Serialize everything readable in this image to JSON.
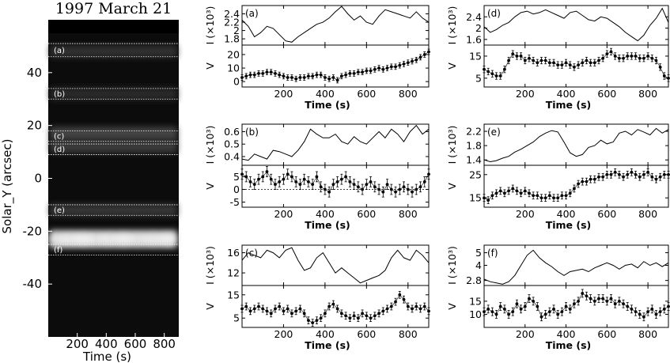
{
  "image_panel": {
    "title": "1997 March 21",
    "ylabel": "Solar_Y (arcsec)",
    "xlabel": "Time (s)",
    "yticks": [
      40,
      20,
      0,
      -20,
      -40
    ],
    "xticks": [
      200,
      400,
      600,
      800
    ],
    "ylim": [
      -60,
      60
    ],
    "xlim": [
      0,
      900
    ],
    "bright_bands": [
      {
        "y": 48,
        "intensity": 0.12
      },
      {
        "y": 32,
        "intensity": 0.1
      },
      {
        "y": 17,
        "intensity": 0.22
      },
      {
        "y": 12,
        "intensity": 0.18
      },
      {
        "y": -12,
        "intensity": 0.15
      },
      {
        "y": -23,
        "intensity": 0.85
      }
    ],
    "slits": [
      {
        "label": "(a)",
        "y_top": 51,
        "y_bot": 46
      },
      {
        "label": "(b)",
        "y_top": 34,
        "y_bot": 30
      },
      {
        "label": "(c)",
        "y_top": 18,
        "y_bot": 14
      },
      {
        "label": "(d)",
        "y_top": 13,
        "y_bot": 9
      },
      {
        "label": "(e)",
        "y_top": -10,
        "y_bot": -14
      },
      {
        "label": "(f)",
        "y_top": -25,
        "y_bot": -29
      }
    ]
  },
  "chart_data": [
    {
      "type": "line",
      "panel": "(a)",
      "intensity": {
        "ylabel": "I (×10³)",
        "yticks": [
          1.8,
          2.0,
          2.2,
          2.4
        ],
        "ylim": [
          1.65,
          2.6
        ],
        "x": [
          0,
          30,
          60,
          90,
          120,
          150,
          180,
          210,
          240,
          270,
          300,
          330,
          360,
          390,
          420,
          450,
          480,
          510,
          540,
          570,
          600,
          630,
          660,
          690,
          720,
          750,
          780,
          810,
          840,
          870,
          900
        ],
        "y": [
          2.25,
          2.1,
          1.85,
          1.95,
          2.1,
          2.05,
          1.9,
          1.75,
          1.72,
          1.85,
          1.95,
          2.05,
          2.15,
          2.2,
          2.3,
          2.45,
          2.58,
          2.4,
          2.25,
          2.35,
          2.2,
          2.15,
          2.35,
          2.5,
          2.45,
          2.4,
          2.35,
          2.3,
          2.45,
          2.3,
          2.2
        ]
      },
      "velocity": {
        "ylabel": "V",
        "yticks": [
          0,
          10,
          20
        ],
        "ylim": [
          -4,
          27
        ],
        "dashed_zero": false,
        "x": [
          0,
          20,
          40,
          60,
          80,
          100,
          120,
          140,
          160,
          180,
          200,
          220,
          240,
          260,
          280,
          300,
          320,
          340,
          360,
          380,
          400,
          420,
          440,
          460,
          480,
          500,
          520,
          540,
          560,
          580,
          600,
          620,
          640,
          660,
          680,
          700,
          720,
          740,
          760,
          780,
          800,
          820,
          840,
          860,
          880,
          900
        ],
        "y": [
          3,
          4,
          5,
          5,
          6,
          6,
          7,
          7,
          6,
          5,
          4,
          3,
          3,
          2,
          3,
          3,
          4,
          4,
          5,
          5,
          3,
          2,
          3,
          1,
          4,
          5,
          6,
          6,
          7,
          7,
          8,
          8,
          9,
          10,
          9,
          10,
          11,
          11,
          12,
          13,
          14,
          15,
          16,
          18,
          20,
          22
        ],
        "err": 2
      }
    },
    {
      "type": "line",
      "panel": "(b)",
      "intensity": {
        "ylabel": "I (×10³)",
        "yticks": [
          0.4,
          0.5,
          0.6
        ],
        "ylim": [
          0.33,
          0.66
        ],
        "x": [
          0,
          30,
          60,
          90,
          120,
          150,
          180,
          210,
          240,
          270,
          300,
          330,
          360,
          390,
          420,
          450,
          480,
          510,
          540,
          570,
          600,
          630,
          660,
          690,
          720,
          750,
          780,
          810,
          840,
          870,
          900
        ],
        "y": [
          0.38,
          0.37,
          0.42,
          0.4,
          0.38,
          0.45,
          0.44,
          0.42,
          0.4,
          0.45,
          0.52,
          0.62,
          0.58,
          0.55,
          0.55,
          0.58,
          0.52,
          0.5,
          0.56,
          0.52,
          0.5,
          0.55,
          0.6,
          0.55,
          0.62,
          0.58,
          0.52,
          0.6,
          0.65,
          0.58,
          0.62
        ]
      },
      "velocity": {
        "ylabel": "V",
        "yticks": [
          -5,
          0,
          5
        ],
        "ylim": [
          -7,
          9.5
        ],
        "dashed_zero": true,
        "x": [
          0,
          20,
          40,
          60,
          80,
          100,
          120,
          140,
          160,
          180,
          200,
          220,
          240,
          260,
          280,
          300,
          320,
          340,
          360,
          380,
          400,
          420,
          440,
          460,
          480,
          500,
          520,
          540,
          560,
          580,
          600,
          620,
          640,
          660,
          680,
          700,
          720,
          740,
          760,
          780,
          800,
          820,
          840,
          860,
          880,
          900
        ],
        "y": [
          6,
          5,
          3,
          2,
          4,
          5,
          7,
          4,
          2,
          3,
          4,
          6,
          5,
          3,
          2,
          4,
          3,
          2,
          5,
          1,
          0,
          -1,
          2,
          3,
          4,
          5,
          3,
          2,
          1,
          0,
          2,
          3,
          1,
          0,
          -1,
          2,
          0,
          -1,
          0,
          1,
          0,
          -1,
          0,
          1,
          3,
          6
        ],
        "err": 2
      }
    },
    {
      "type": "line",
      "panel": "(c)",
      "intensity": {
        "ylabel": "I (×10³)",
        "yticks": [
          12,
          16
        ],
        "ylim": [
          9.5,
          17.5
        ],
        "x": [
          0,
          30,
          60,
          90,
          120,
          150,
          180,
          210,
          240,
          270,
          300,
          330,
          360,
          390,
          420,
          450,
          480,
          510,
          540,
          570,
          600,
          630,
          660,
          690,
          720,
          750,
          780,
          810,
          840,
          870,
          900
        ],
        "y": [
          14.5,
          16.0,
          15.5,
          15.0,
          16.5,
          16.0,
          15.0,
          16.5,
          17.0,
          14.5,
          12.5,
          13.0,
          15.0,
          16.0,
          14.0,
          12.0,
          13.0,
          12.0,
          11.0,
          10.0,
          10.5,
          11.0,
          11.5,
          12.5,
          15.0,
          16.5,
          15.0,
          14.5,
          16.5,
          15.5,
          14.0
        ]
      },
      "velocity": {
        "ylabel": "V",
        "yticks": [
          5,
          15
        ],
        "ylim": [
          1,
          19
        ],
        "dashed_zero": false,
        "x": [
          0,
          20,
          40,
          60,
          80,
          100,
          120,
          140,
          160,
          180,
          200,
          220,
          240,
          260,
          280,
          300,
          320,
          340,
          360,
          380,
          400,
          420,
          440,
          460,
          480,
          500,
          520,
          540,
          560,
          580,
          600,
          620,
          640,
          660,
          680,
          700,
          720,
          740,
          760,
          780,
          800,
          820,
          840,
          860,
          880,
          900
        ],
        "y": [
          9,
          10,
          8,
          9,
          10,
          9,
          8,
          7,
          9,
          10,
          8,
          9,
          7,
          8,
          9,
          7,
          4,
          3,
          4,
          5,
          7,
          10,
          11,
          9,
          7,
          6,
          5,
          6,
          5,
          7,
          6,
          5,
          6,
          7,
          8,
          9,
          10,
          12,
          15,
          13,
          10,
          9,
          10,
          9,
          10,
          8
        ],
        "err": 1.5
      }
    },
    {
      "type": "line",
      "panel": "(d)",
      "intensity": {
        "ylabel": "I (×10³)",
        "yticks": [
          1.6,
          2.0,
          2.4
        ],
        "ylim": [
          1.4,
          2.8
        ],
        "x": [
          0,
          30,
          60,
          90,
          120,
          150,
          180,
          210,
          240,
          270,
          300,
          330,
          360,
          390,
          420,
          450,
          480,
          510,
          540,
          570,
          600,
          630,
          660,
          690,
          720,
          750,
          780,
          810,
          840,
          870,
          900
        ],
        "y": [
          2.05,
          1.85,
          1.95,
          2.1,
          2.2,
          2.4,
          2.55,
          2.6,
          2.5,
          2.55,
          2.65,
          2.55,
          2.45,
          2.35,
          2.55,
          2.6,
          2.45,
          2.3,
          2.25,
          2.4,
          2.35,
          2.2,
          2.05,
          1.85,
          1.7,
          1.55,
          1.75,
          2.1,
          2.35,
          2.7,
          2.2
        ]
      },
      "velocity": {
        "ylabel": "V",
        "yticks": [
          5,
          15
        ],
        "ylim": [
          1,
          20
        ],
        "dashed_zero": false,
        "x": [
          0,
          20,
          40,
          60,
          80,
          100,
          120,
          140,
          160,
          180,
          200,
          220,
          240,
          260,
          280,
          300,
          320,
          340,
          360,
          380,
          400,
          420,
          440,
          460,
          480,
          500,
          520,
          540,
          560,
          580,
          600,
          620,
          640,
          660,
          680,
          700,
          720,
          740,
          760,
          780,
          800,
          820,
          840,
          860,
          880,
          900
        ],
        "y": [
          9,
          8,
          7,
          6,
          6,
          9,
          13,
          16,
          15,
          15,
          13,
          14,
          13,
          12,
          13,
          13,
          12,
          12,
          11,
          11,
          12,
          11,
          10,
          11,
          12,
          13,
          12,
          12,
          13,
          14,
          16,
          17,
          15,
          14,
          14,
          15,
          15,
          15,
          14,
          14,
          15,
          14,
          13,
          10,
          6,
          5
        ],
        "err": 1.5
      }
    },
    {
      "type": "line",
      "panel": "(e)",
      "intensity": {
        "ylabel": "I (×10³)",
        "yticks": [
          1.4,
          1.8,
          2.2
        ],
        "ylim": [
          1.25,
          2.4
        ],
        "x": [
          0,
          30,
          60,
          90,
          120,
          150,
          180,
          210,
          240,
          270,
          300,
          330,
          360,
          390,
          420,
          450,
          480,
          510,
          540,
          570,
          600,
          630,
          660,
          690,
          720,
          750,
          780,
          810,
          840,
          870,
          900
        ],
        "y": [
          1.4,
          1.35,
          1.38,
          1.45,
          1.5,
          1.62,
          1.7,
          1.8,
          1.9,
          2.05,
          2.15,
          2.22,
          2.18,
          1.9,
          1.6,
          1.5,
          1.55,
          1.75,
          1.8,
          1.95,
          1.85,
          1.9,
          2.15,
          2.2,
          2.1,
          2.25,
          2.18,
          2.1,
          2.28,
          2.15,
          2.25
        ]
      },
      "velocity": {
        "ylabel": "V",
        "yticks": [
          15,
          25
        ],
        "ylim": [
          11,
          29
        ],
        "dashed_zero": false,
        "x": [
          0,
          20,
          40,
          60,
          80,
          100,
          120,
          140,
          160,
          180,
          200,
          220,
          240,
          260,
          280,
          300,
          320,
          340,
          360,
          380,
          400,
          420,
          440,
          460,
          480,
          500,
          520,
          540,
          560,
          580,
          600,
          620,
          640,
          660,
          680,
          700,
          720,
          740,
          760,
          780,
          800,
          820,
          840,
          860,
          880,
          900
        ],
        "y": [
          15,
          14,
          16,
          17,
          18,
          17,
          18,
          19,
          18,
          17,
          18,
          17,
          16,
          16,
          15,
          15,
          16,
          15,
          15,
          16,
          16,
          17,
          19,
          21,
          22,
          22,
          23,
          23,
          24,
          24,
          25,
          25,
          26,
          25,
          24,
          25,
          26,
          25,
          24,
          25,
          26,
          24,
          23,
          24,
          25,
          25
        ],
        "err": 1.5
      }
    },
    {
      "type": "line",
      "panel": "(f)",
      "intensity": {
        "ylabel": "I (×10³)",
        "yticks": [
          2.8,
          4.0,
          5.0
        ],
        "ylim": [
          2.4,
          5.6
        ],
        "x": [
          0,
          30,
          60,
          90,
          120,
          150,
          180,
          210,
          240,
          270,
          300,
          330,
          360,
          390,
          420,
          450,
          480,
          510,
          540,
          570,
          600,
          630,
          660,
          690,
          720,
          750,
          780,
          810,
          840,
          870,
          900
        ],
        "y": [
          2.9,
          2.7,
          2.6,
          2.5,
          2.7,
          3.2,
          4.0,
          4.8,
          5.2,
          4.6,
          4.2,
          3.9,
          3.5,
          3.2,
          3.5,
          3.6,
          3.7,
          3.5,
          3.8,
          4.0,
          4.2,
          4.0,
          3.7,
          4.0,
          4.1,
          3.8,
          4.3,
          4.0,
          4.2,
          3.9,
          4.2
        ]
      },
      "velocity": {
        "ylabel": "V",
        "yticks": [
          10,
          15
        ],
        "ylim": [
          5,
          21
        ],
        "dashed_zero": false,
        "x": [
          0,
          20,
          40,
          60,
          80,
          100,
          120,
          140,
          160,
          180,
          200,
          220,
          240,
          260,
          280,
          300,
          320,
          340,
          360,
          380,
          400,
          420,
          440,
          460,
          480,
          500,
          520,
          540,
          560,
          580,
          600,
          620,
          640,
          660,
          680,
          700,
          720,
          740,
          760,
          780,
          800,
          820,
          840,
          860,
          880,
          900
        ],
        "y": [
          11,
          12,
          11,
          10,
          13,
          12,
          10,
          11,
          14,
          12,
          13,
          16,
          15,
          13,
          9,
          10,
          11,
          12,
          10,
          11,
          13,
          12,
          14,
          15,
          18,
          17,
          16,
          15,
          16,
          16,
          15,
          16,
          14,
          15,
          14,
          13,
          12,
          11,
          10,
          9,
          11,
          12,
          10,
          11,
          12,
          13
        ],
        "err": 1.5
      }
    }
  ],
  "panel_xlabel": "Time (s)",
  "panel_xticks": [
    200,
    400,
    600,
    800
  ],
  "panel_xlim": [
    0,
    900
  ]
}
